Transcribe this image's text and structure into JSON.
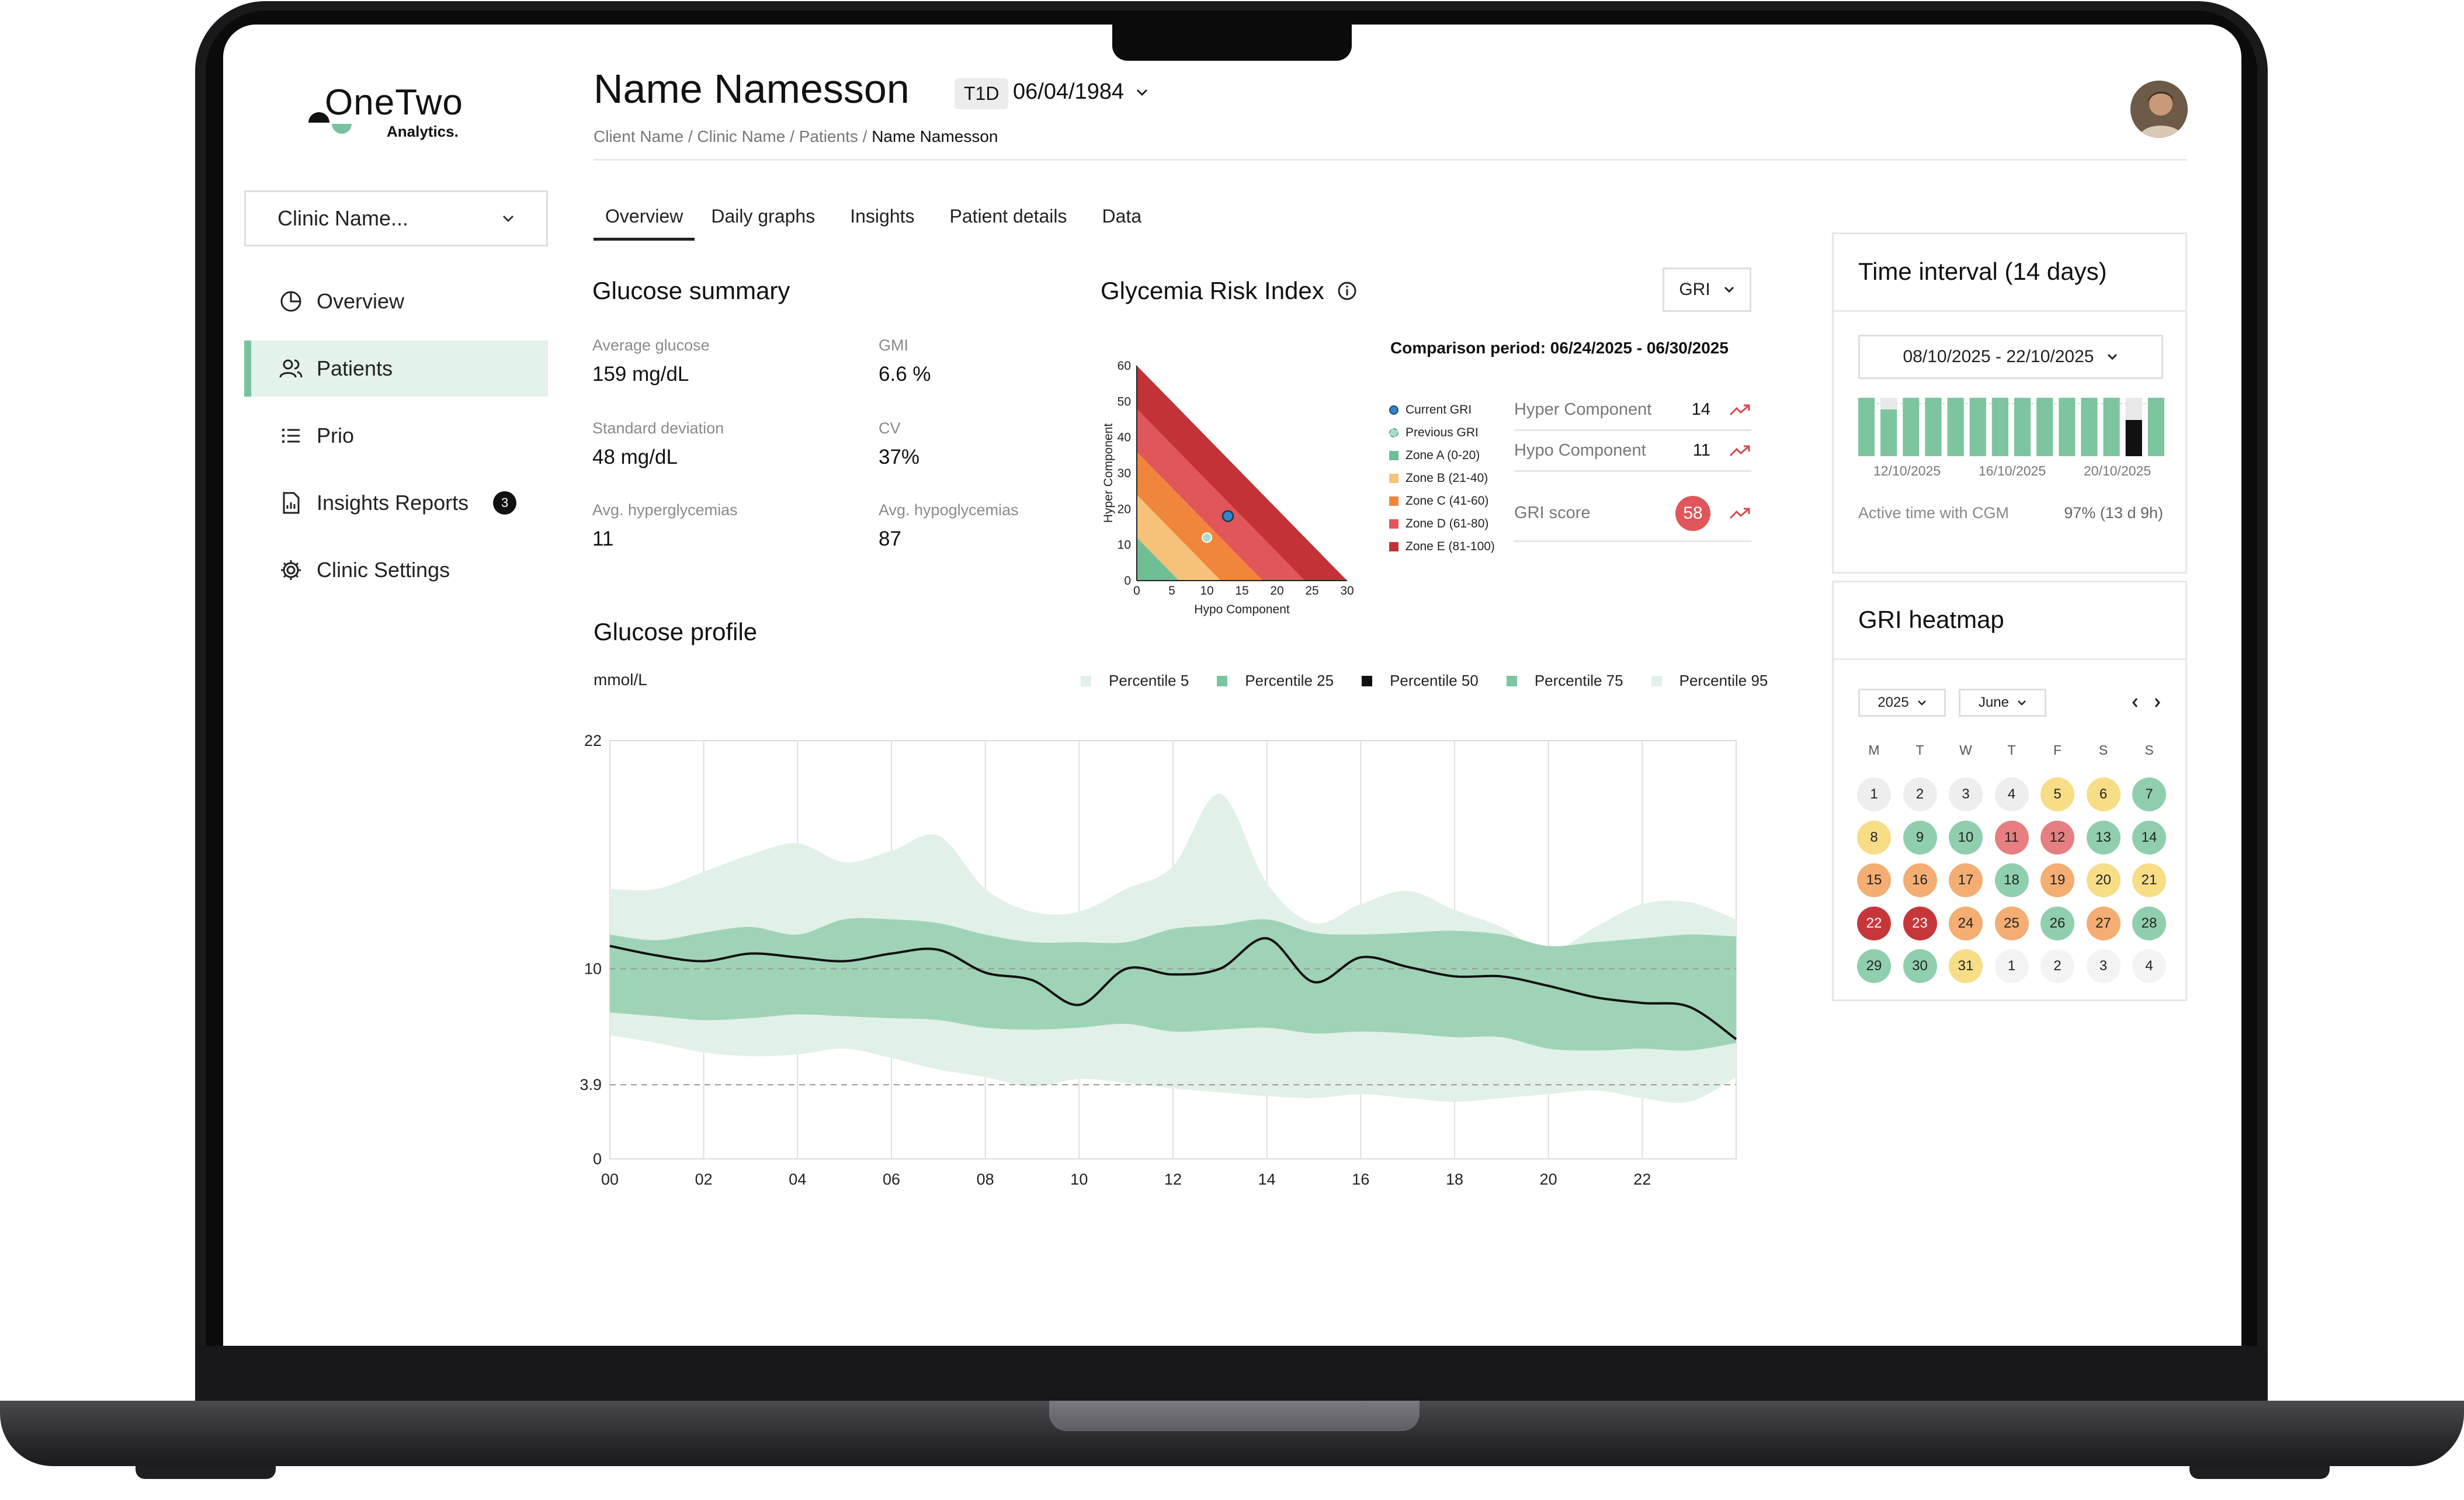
{
  "brand": {
    "name": "OneTwo",
    "sub": "Analytics."
  },
  "sidebar": {
    "clinic_select": "Clinic Name...",
    "items": [
      {
        "label": "Overview",
        "icon": "pie-chart-icon"
      },
      {
        "label": "Patients",
        "icon": "users-icon",
        "active": true
      },
      {
        "label": "Prio",
        "icon": "list-icon"
      },
      {
        "label": "Insights Reports",
        "icon": "report-icon",
        "badge": "3"
      },
      {
        "label": "Clinic Settings",
        "icon": "gear-icon"
      }
    ]
  },
  "header": {
    "patient_name": "Name Namesson",
    "type": "T1D",
    "dob": "06/04/1984",
    "breadcrumb": [
      "Client Name",
      "Clinic Name",
      "Patients",
      "Name Namesson"
    ],
    "separator": "/"
  },
  "tabs": [
    "Overview",
    "Daily graphs",
    "Insights",
    "Patient details",
    "Data"
  ],
  "glucose_summary": {
    "title": "Glucose summary",
    "stats": [
      {
        "label": "Average glucose",
        "value": "159 mg/dL"
      },
      {
        "label": "GMI",
        "value": "6.6 %"
      },
      {
        "label": "Standard deviation",
        "value": "48 mg/dL"
      },
      {
        "label": "CV",
        "value": "37%"
      },
      {
        "label": "Avg. hyperglycemias",
        "value": "11"
      },
      {
        "label": "Avg. hypoglycemias",
        "value": "87"
      }
    ]
  },
  "gri": {
    "title": "Glycemia Risk Index",
    "select": "GRI",
    "comparison": "Comparison period: 06/24/2025 - 06/30/2025",
    "x_label": "Hypo Component",
    "y_label": "Hyper Component",
    "x_ticks": [
      "0",
      "5",
      "10",
      "15",
      "20",
      "25",
      "30"
    ],
    "y_ticks": [
      "0",
      "10",
      "20",
      "30",
      "40",
      "50",
      "60"
    ],
    "legend": [
      {
        "label": "Current GRI",
        "color": "#2f86c9"
      },
      {
        "label": "Previous GRI",
        "color": "#a9dccd"
      },
      {
        "label": "Zone A (0-20)",
        "color": "#6fbf95"
      },
      {
        "label": "Zone B (21-40)",
        "color": "#f6c27a"
      },
      {
        "label": "Zone C (41-60)",
        "color": "#f0853c"
      },
      {
        "label": "Zone D (61-80)",
        "color": "#e0565a"
      },
      {
        "label": "Zone E (81-100)",
        "color": "#c23236"
      }
    ],
    "current_point": {
      "x": 13,
      "y": 18
    },
    "previous_point": {
      "x": 10,
      "y": 12
    },
    "hyper_label": "Hyper Component",
    "hyper_value": "14",
    "hypo_label": "Hypo Component",
    "hypo_value": "11",
    "score_label": "GRI score",
    "score_value": "58"
  },
  "glucose_profile": {
    "title": "Glucose profile",
    "unit": "mmol/L",
    "legend": [
      {
        "label": "Percentile 5",
        "color": "#e1f1e8"
      },
      {
        "label": "Percentile 25",
        "color": "#7cc59f"
      },
      {
        "label": "Percentile 50",
        "color": "#111111"
      },
      {
        "label": "Percentile 75",
        "color": "#7cc59f"
      },
      {
        "label": "Percentile 95",
        "color": "#e1f1e8"
      }
    ],
    "y_ticks": [
      "22",
      "10",
      "3.9",
      "0"
    ],
    "x_ticks": [
      "00",
      "02",
      "04",
      "06",
      "08",
      "10",
      "12",
      "14",
      "16",
      "18",
      "20",
      "22"
    ]
  },
  "chart_data": {
    "type": "area",
    "x": [
      0,
      1,
      2,
      3,
      4,
      5,
      6,
      7,
      8,
      9,
      10,
      11,
      12,
      13,
      14,
      15,
      16,
      17,
      18,
      19,
      20,
      21,
      22,
      23,
      24
    ],
    "ylim": [
      0,
      22
    ],
    "xlim": [
      0,
      24
    ],
    "reference_lines": [
      10,
      3.9
    ],
    "series": [
      {
        "name": "Percentile 5",
        "values": [
          6.5,
          6.1,
          5.6,
          5.4,
          5.5,
          5.8,
          5.3,
          4.7,
          4.3,
          3.8,
          4.2,
          4.0,
          3.7,
          3.5,
          3.3,
          3.2,
          3.4,
          3.2,
          3.0,
          3.2,
          3.4,
          3.6,
          3.2,
          3.0,
          4.3
        ]
      },
      {
        "name": "Percentile 25",
        "values": [
          7.7,
          7.5,
          7.3,
          7.4,
          7.6,
          7.5,
          7.4,
          7.3,
          6.9,
          6.8,
          6.9,
          7.1,
          6.7,
          6.8,
          6.9,
          6.6,
          6.7,
          6.6,
          6.4,
          6.4,
          5.8,
          5.7,
          5.8,
          5.7,
          6.1
        ]
      },
      {
        "name": "Percentile 50",
        "values": [
          11.2,
          10.7,
          10.4,
          10.8,
          10.6,
          10.4,
          10.8,
          11.0,
          9.8,
          9.4,
          8.1,
          10.0,
          9.7,
          10.0,
          11.6,
          9.3,
          10.6,
          10.1,
          9.6,
          9.6,
          9.1,
          8.5,
          8.2,
          8.0,
          6.3
        ]
      },
      {
        "name": "Percentile 75",
        "values": [
          11.8,
          11.5,
          11.9,
          12.2,
          11.8,
          12.6,
          12.6,
          12.4,
          11.8,
          11.4,
          11.4,
          11.4,
          12.1,
          12.3,
          12.6,
          11.9,
          11.8,
          11.9,
          12.0,
          11.8,
          11.2,
          11.4,
          11.6,
          11.8,
          11.7
        ]
      },
      {
        "name": "Percentile 95",
        "values": [
          14.2,
          14.2,
          15.1,
          16.0,
          16.6,
          15.6,
          16.2,
          17.0,
          14.2,
          13.0,
          13.0,
          14.2,
          15.4,
          19.2,
          14.5,
          12.4,
          13.4,
          14.1,
          13.1,
          12.2,
          10.9,
          12.2,
          13.4,
          13.5,
          12.6
        ]
      }
    ]
  },
  "time_interval": {
    "title": "Time interval (14 days)",
    "range": "08/10/2025 - 22/10/2025",
    "dates": [
      "12/10/2025",
      "16/10/2025",
      "20/10/2025"
    ],
    "bars": [
      1,
      0.8,
      1,
      1,
      1,
      1,
      1,
      1,
      1,
      1,
      1,
      1,
      0.62,
      1
    ],
    "active_label": "Active time with CGM",
    "active_value": "97% (13 d 9h)"
  },
  "heatmap": {
    "title": "GRI heatmap",
    "year": "2025",
    "month": "June",
    "weekdays": [
      "M",
      "T",
      "W",
      "T",
      "F",
      "S",
      "S"
    ],
    "zone_colors": {
      "none": "#eeeeee",
      "a": "#8fcfad",
      "b": "#f6dd86",
      "c": "#f4ad72",
      "d": "#e77f82",
      "e": "#c7373a"
    },
    "days": [
      {
        "d": "1",
        "z": "none"
      },
      {
        "d": "2",
        "z": "none"
      },
      {
        "d": "3",
        "z": "none"
      },
      {
        "d": "4",
        "z": "none"
      },
      {
        "d": "5",
        "z": "b"
      },
      {
        "d": "6",
        "z": "b"
      },
      {
        "d": "7",
        "z": "a"
      },
      {
        "d": "8",
        "z": "b"
      },
      {
        "d": "9",
        "z": "a"
      },
      {
        "d": "10",
        "z": "a"
      },
      {
        "d": "11",
        "z": "d"
      },
      {
        "d": "12",
        "z": "d"
      },
      {
        "d": "13",
        "z": "a"
      },
      {
        "d": "14",
        "z": "a"
      },
      {
        "d": "15",
        "z": "c"
      },
      {
        "d": "16",
        "z": "c"
      },
      {
        "d": "17",
        "z": "c"
      },
      {
        "d": "18",
        "z": "a"
      },
      {
        "d": "19",
        "z": "c"
      },
      {
        "d": "20",
        "z": "b"
      },
      {
        "d": "21",
        "z": "b"
      },
      {
        "d": "22",
        "z": "e"
      },
      {
        "d": "23",
        "z": "e"
      },
      {
        "d": "24",
        "z": "c"
      },
      {
        "d": "25",
        "z": "c"
      },
      {
        "d": "26",
        "z": "a"
      },
      {
        "d": "27",
        "z": "c"
      },
      {
        "d": "28",
        "z": "a"
      },
      {
        "d": "29",
        "z": "a"
      },
      {
        "d": "30",
        "z": "a"
      },
      {
        "d": "31",
        "z": "b"
      },
      {
        "d": "1",
        "z": "none"
      },
      {
        "d": "2",
        "z": "none"
      },
      {
        "d": "3",
        "z": "none"
      },
      {
        "d": "4",
        "z": "none"
      }
    ]
  }
}
